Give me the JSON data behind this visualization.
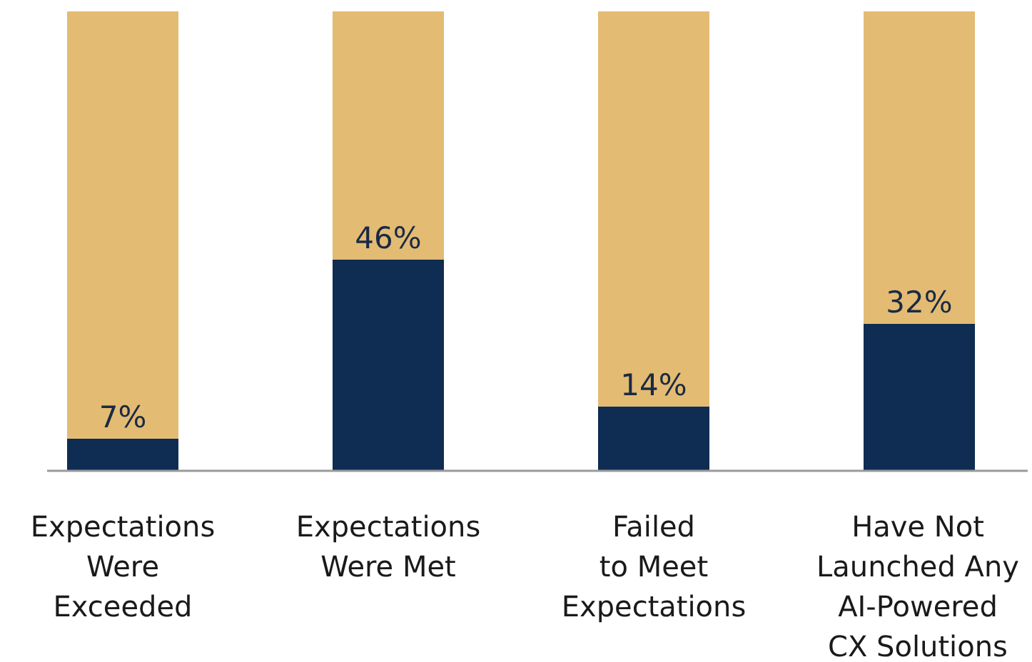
{
  "chart_data": {
    "type": "bar",
    "stacked": true,
    "categories": [
      "Expectations\nWere\nExceeded",
      "Expectations\nWere Met",
      "Failed\nto Meet\nExpectations",
      "Have Not\nLaunched Any\nAI-Powered\nCX Solutions"
    ],
    "series": [
      {
        "color": "#0f2c52",
        "values": [
          7,
          46,
          14,
          32
        ],
        "value_labels": [
          "7%",
          "46%",
          "14%",
          "32%"
        ]
      },
      {
        "color": "#e3bb73",
        "values": [
          93,
          54,
          86,
          68
        ]
      }
    ],
    "ylim": [
      0,
      100
    ],
    "tick_labels": "x"
  }
}
